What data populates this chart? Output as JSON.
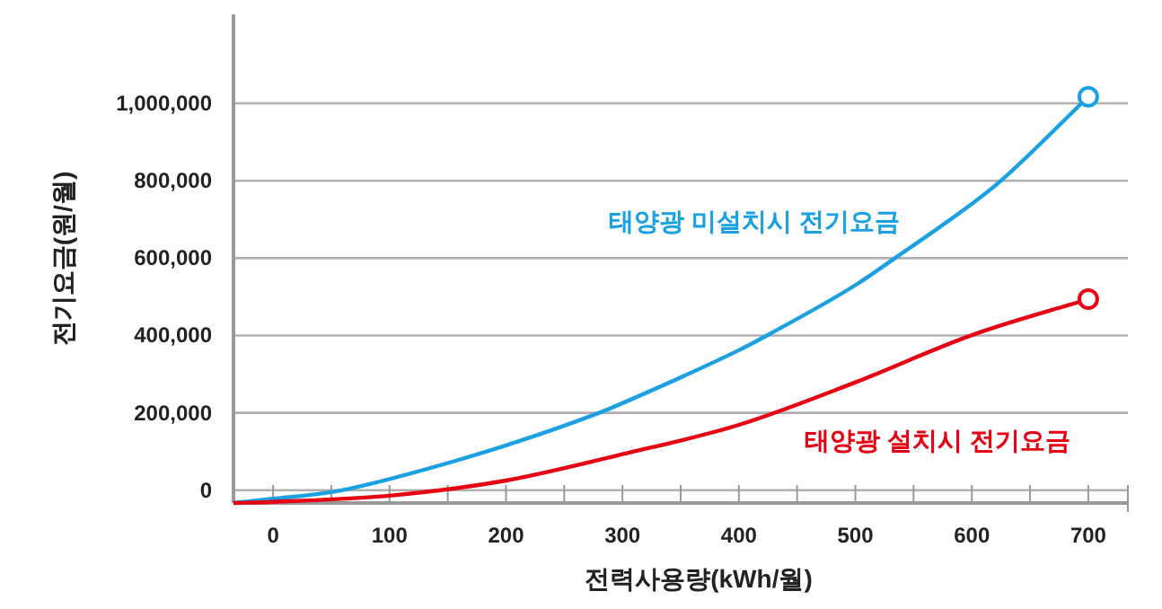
{
  "chart_data": {
    "type": "line",
    "xlabel": "전력사용량(kWh/월)",
    "ylabel": "전기요금(원/월)",
    "xlim": [
      -34,
      734
    ],
    "ylim": [
      -33000,
      1230000
    ],
    "xticks": [
      0,
      {
        "value": 50,
        "label": null
      },
      100,
      {
        "value": 150,
        "label": null
      },
      200,
      {
        "value": 250,
        "label": null
      },
      300,
      {
        "value": 350,
        "label": null
      },
      400,
      {
        "value": 450,
        "label": null
      },
      500,
      {
        "value": 550,
        "label": null
      },
      600,
      {
        "value": 650,
        "label": null
      },
      700
    ],
    "yticks": [
      {
        "value": 0,
        "label": "0"
      },
      {
        "value": 200000,
        "label": "200,000"
      },
      {
        "value": 400000,
        "label": "400,000"
      },
      {
        "value": 600000,
        "label": "600,000"
      },
      {
        "value": 800000,
        "label": "800,000"
      },
      {
        "value": 1000000,
        "label": "1,000,000"
      }
    ],
    "grid": "y",
    "series": [
      {
        "name": "태양광 미설치시 전기요금",
        "color": "#1ba1e2",
        "x": [
          -34,
          0,
          50,
          100,
          200,
          280,
          300,
          400,
          424,
          500,
          534,
          600,
          625,
          700
        ],
        "values": [
          -33000,
          -22000,
          -5000,
          29000,
          116000,
          200000,
          225000,
          362000,
          400000,
          530000,
          600000,
          740000,
          800000,
          1017000
        ]
      },
      {
        "name": "태양광 설치시 전기요금",
        "color": "#e60012",
        "x": [
          -34,
          0,
          100,
          200,
          300,
          400,
          500,
          600,
          700
        ],
        "values": [
          -33000,
          -30000,
          -14000,
          25000,
          93000,
          169000,
          279000,
          401000,
          494000
        ]
      },
      {
        "type": "scatter",
        "marker": "circle",
        "color": "#1ba1e2",
        "x": [
          700
        ],
        "values": [
          1017000
        ]
      },
      {
        "type": "scatter",
        "marker": "circle",
        "color": "#e60012",
        "x": [
          700
        ],
        "values": [
          494000
        ]
      }
    ]
  }
}
